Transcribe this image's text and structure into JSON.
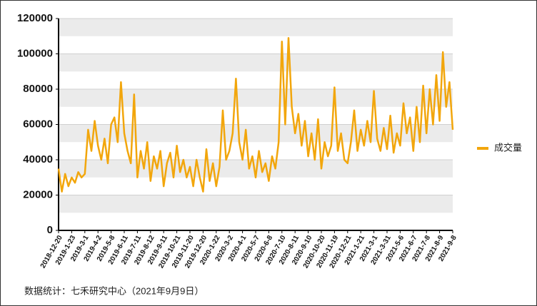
{
  "chart_data": {
    "type": "line",
    "categories": [
      "2018-12-20",
      null,
      null,
      null,
      "2019-1-23",
      null,
      null,
      null,
      "2019-3-1",
      null,
      null,
      null,
      "2019-4-2",
      null,
      null,
      null,
      "2019-5-8",
      null,
      null,
      null,
      "2019-6-11",
      null,
      null,
      null,
      "2019-7-11",
      null,
      null,
      null,
      "2019-8-12",
      null,
      null,
      null,
      "2019-9-11",
      null,
      null,
      null,
      "2019-10-21",
      null,
      null,
      null,
      "2019-11-20",
      null,
      null,
      null,
      "2019-12-20",
      null,
      null,
      null,
      "2020-1-22",
      null,
      null,
      null,
      "2020-3-2",
      null,
      null,
      null,
      "2020-4-1",
      null,
      null,
      null,
      "2020-5-7",
      null,
      null,
      null,
      "2020-6-8",
      null,
      null,
      null,
      "2020-7-10",
      null,
      null,
      null,
      "2020-8-11",
      null,
      null,
      null,
      "2020-9-10",
      null,
      null,
      null,
      "2020-10-20",
      null,
      null,
      null,
      "2020-11-19",
      null,
      null,
      null,
      "2020-12-21",
      null,
      null,
      null,
      "2021-1-21",
      null,
      null,
      null,
      "2021-3-1",
      null,
      null,
      null,
      "2021-3-31",
      null,
      null,
      null,
      "2021-5-6",
      null,
      null,
      null,
      "2021-6-7",
      null,
      null,
      null,
      "2021-7-8",
      null,
      null,
      null,
      "2021-8-9",
      null,
      null,
      null,
      "2021-9-8"
    ],
    "series": [
      {
        "name": "成交量",
        "color": "#f2a60c",
        "values": [
          35000,
          22000,
          32000,
          25000,
          30000,
          27000,
          33000,
          30000,
          32000,
          57000,
          45000,
          62000,
          48000,
          40000,
          52000,
          38000,
          60000,
          64000,
          50000,
          84000,
          55000,
          45000,
          38000,
          77000,
          30000,
          45000,
          35000,
          50000,
          28000,
          42000,
          35000,
          45000,
          25000,
          38000,
          44000,
          30000,
          48000,
          33000,
          40000,
          30000,
          36000,
          25000,
          40000,
          30000,
          22000,
          46000,
          28000,
          38000,
          25000,
          36000,
          68000,
          40000,
          45000,
          55000,
          86000,
          50000,
          40000,
          57000,
          35000,
          42000,
          30000,
          45000,
          33000,
          38000,
          28000,
          42000,
          35000,
          50000,
          107000,
          60000,
          109000,
          70000,
          55000,
          66000,
          48000,
          62000,
          42000,
          55000,
          40000,
          63000,
          35000,
          50000,
          42000,
          48000,
          81000,
          45000,
          55000,
          40000,
          38000,
          50000,
          68000,
          45000,
          57000,
          48000,
          62000,
          50000,
          79000,
          52000,
          45000,
          58000,
          46000,
          65000,
          44000,
          55000,
          48000,
          72000,
          55000,
          64000,
          45000,
          70000,
          50000,
          82000,
          55000,
          80000,
          60000,
          88000,
          62000,
          101000,
          70000,
          84000,
          57000
        ]
      }
    ],
    "ylim": [
      0,
      120000
    ],
    "yticks": [
      0,
      20000,
      40000,
      60000,
      80000,
      100000,
      120000
    ],
    "grid": true,
    "legend": "right",
    "note": "数据统计：七禾研究中心（2021年9月9日）"
  }
}
